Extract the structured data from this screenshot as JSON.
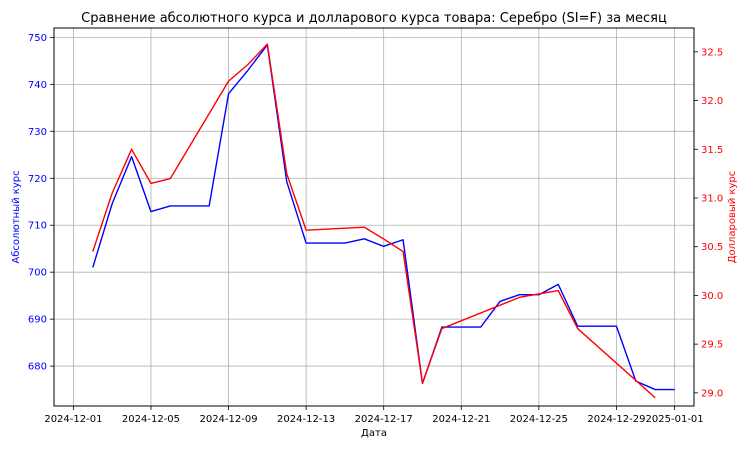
{
  "chart_data": {
    "type": "line",
    "title": "Сравнение абсолютного курса и долларового курса товара: Серебро (SI=F) за месяц",
    "xlabel": "Дата",
    "ylabel_left": "Абсолютный курс",
    "ylabel_right": "Долларовый курс",
    "grid": true,
    "colors": {
      "left": "#0000ff",
      "right": "#ff0000",
      "grid": "#b0b0b0"
    },
    "x_ticks": [
      "2024-12-01",
      "2024-12-05",
      "2024-12-09",
      "2024-12-13",
      "2024-12-17",
      "2024-12-21",
      "2024-12-25",
      "2024-12-29",
      "2025-01-01"
    ],
    "ylim_left": [
      671.5,
      752.0
    ],
    "yticks_left": [
      680,
      690,
      700,
      710,
      720,
      730,
      740,
      750
    ],
    "ylim_right": [
      28.865,
      32.745
    ],
    "yticks_right": [
      "29.0",
      "29.5",
      "30.0",
      "30.5",
      "31.0",
      "31.5",
      "32.0",
      "32.5"
    ],
    "series": [
      {
        "axis": "left",
        "points": [
          [
            "2024-12-02",
            701.0
          ],
          [
            "2024-12-03",
            714.6
          ],
          [
            "2024-12-04",
            724.6
          ],
          [
            "2024-12-05",
            712.9
          ],
          [
            "2024-12-06",
            714.1
          ],
          [
            "2024-12-08",
            714.1
          ],
          [
            "2024-12-09",
            738.0
          ],
          [
            "2024-12-10",
            743.0
          ],
          [
            "2024-12-11",
            748.4
          ],
          [
            "2024-12-12",
            719.3
          ],
          [
            "2024-12-13",
            706.2
          ],
          [
            "2024-12-15",
            706.2
          ],
          [
            "2024-12-16",
            707.1
          ],
          [
            "2024-12-17",
            705.5
          ],
          [
            "2024-12-18",
            706.9
          ],
          [
            "2024-12-19",
            676.3
          ],
          [
            "2024-12-20",
            688.3
          ],
          [
            "2024-12-22",
            688.3
          ],
          [
            "2024-12-23",
            693.8
          ],
          [
            "2024-12-24",
            695.2
          ],
          [
            "2024-12-25",
            695.2
          ],
          [
            "2024-12-26",
            697.4
          ],
          [
            "2024-12-27",
            688.5
          ],
          [
            "2024-12-29",
            688.5
          ],
          [
            "2024-12-30",
            676.8
          ],
          [
            "2024-12-31",
            675.0
          ],
          [
            "2025-01-01",
            675.0
          ]
        ]
      },
      {
        "axis": "right",
        "points": [
          [
            "2024-12-02",
            30.45
          ],
          [
            "2024-12-03",
            31.05
          ],
          [
            "2024-12-04",
            31.5
          ],
          [
            "2024-12-05",
            31.15
          ],
          [
            "2024-12-06",
            31.2
          ],
          [
            "2024-12-09",
            32.2
          ],
          [
            "2024-12-10",
            32.37
          ],
          [
            "2024-12-11",
            32.58
          ],
          [
            "2024-12-12",
            31.25
          ],
          [
            "2024-12-13",
            30.67
          ],
          [
            "2024-12-16",
            30.7
          ],
          [
            "2024-12-17",
            30.58
          ],
          [
            "2024-12-18",
            30.45
          ],
          [
            "2024-12-19",
            29.1
          ],
          [
            "2024-12-20",
            29.66
          ],
          [
            "2024-12-24",
            29.98
          ],
          [
            "2024-12-26",
            30.05
          ],
          [
            "2024-12-27",
            29.66
          ],
          [
            "2024-12-31",
            28.95
          ]
        ]
      }
    ]
  }
}
